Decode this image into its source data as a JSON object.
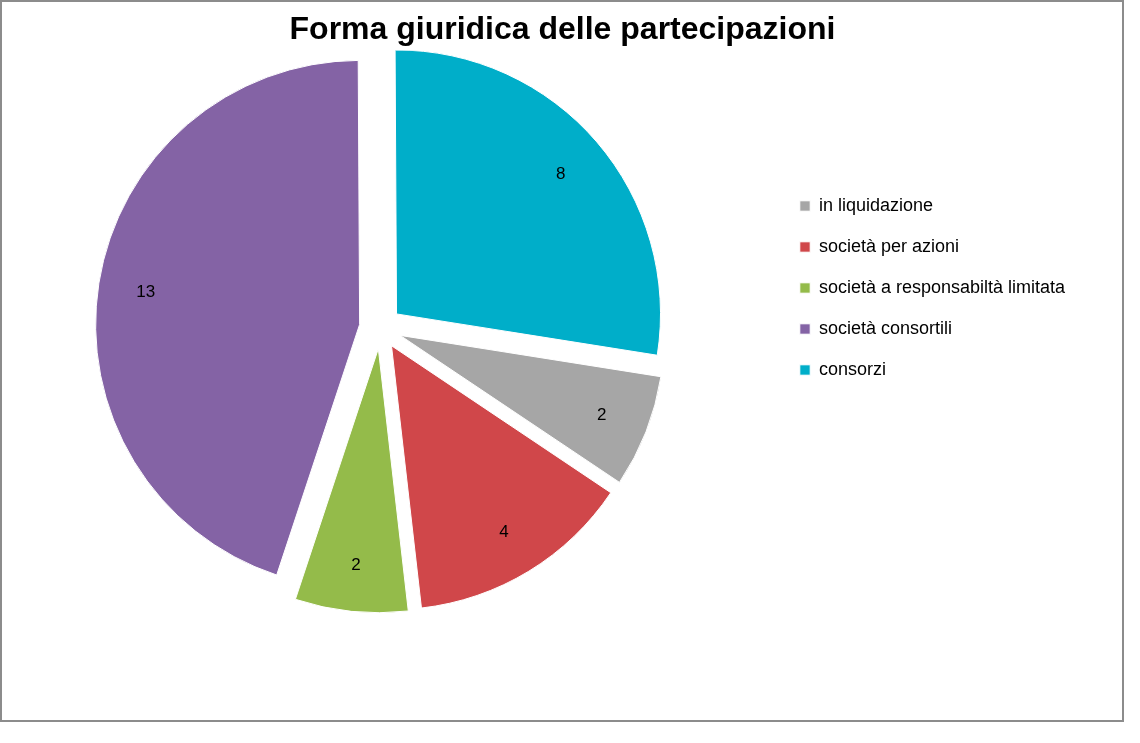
{
  "chart_data": {
    "type": "pie",
    "title": "Forma giuridica delle partecipazioni",
    "categories": [
      "in liquidazione",
      "società per azioni",
      "società a responsabiltà limitata",
      "società consortili",
      "consorzi"
    ],
    "values": [
      2,
      4,
      2,
      13,
      8
    ],
    "colors": [
      "#a6a6a6",
      "#d0474a",
      "#94bb4a",
      "#8463a5",
      "#00aec9"
    ],
    "data_labels": true,
    "legend": "right"
  }
}
